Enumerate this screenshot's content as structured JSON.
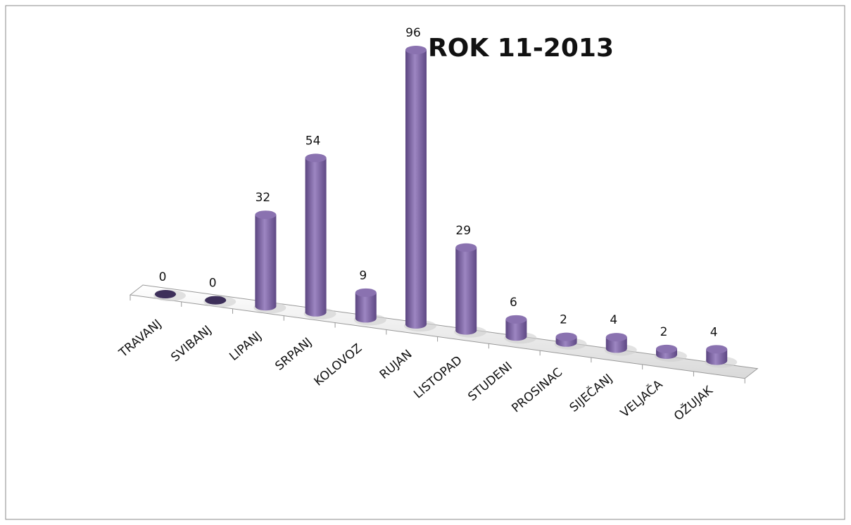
{
  "chart_data": {
    "type": "bar",
    "title": "ROK 11-2013",
    "categories": [
      "TRAVANJ",
      "SVIBANJ",
      "LIPANJ",
      "SRPANJ",
      "KOLOVOZ",
      "RUJAN",
      "LISTOPAD",
      "STUDENI",
      "PROSINAC",
      "SIJEČANJ",
      "VELJAČA",
      "OŽUJAK"
    ],
    "values": [
      0,
      0,
      32,
      54,
      9,
      96,
      29,
      6,
      2,
      4,
      2,
      4
    ],
    "color": "#8064a2"
  }
}
